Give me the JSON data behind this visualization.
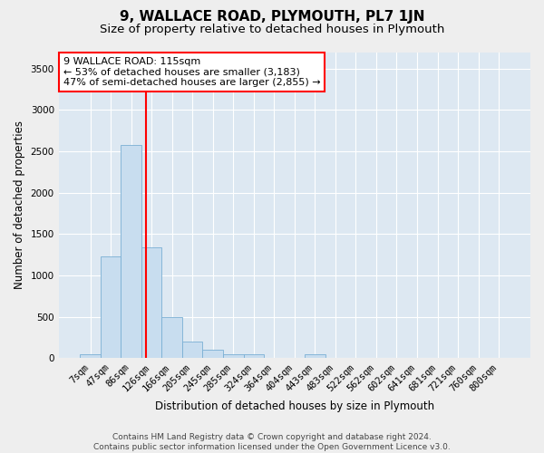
{
  "title": "9, WALLACE ROAD, PLYMOUTH, PL7 1JN",
  "subtitle": "Size of property relative to detached houses in Plymouth",
  "xlabel": "Distribution of detached houses by size in Plymouth",
  "ylabel": "Number of detached properties",
  "bin_labels": [
    "7sqm",
    "47sqm",
    "86sqm",
    "126sqm",
    "166sqm",
    "205sqm",
    "245sqm",
    "285sqm",
    "324sqm",
    "364sqm",
    "404sqm",
    "443sqm",
    "483sqm",
    "522sqm",
    "562sqm",
    "602sqm",
    "641sqm",
    "681sqm",
    "721sqm",
    "760sqm",
    "800sqm"
  ],
  "bar_heights": [
    50,
    1230,
    2580,
    1340,
    490,
    200,
    100,
    50,
    50,
    0,
    0,
    50,
    0,
    0,
    0,
    0,
    0,
    0,
    0,
    0,
    0
  ],
  "bar_color": "#c8ddef",
  "bar_edge_color": "#7aafd4",
  "ylim": [
    0,
    3700
  ],
  "yticks": [
    0,
    500,
    1000,
    1500,
    2000,
    2500,
    3000,
    3500
  ],
  "property_sqm": 115,
  "annotation_line1": "9 WALLACE ROAD: 115sqm",
  "annotation_line2": "← 53% of detached houses are smaller (3,183)",
  "annotation_line3": "47% of semi-detached houses are larger (2,855) →",
  "footer_line1": "Contains HM Land Registry data © Crown copyright and database right 2024.",
  "footer_line2": "Contains public sector information licensed under the Open Government Licence v3.0.",
  "bg_color": "#dde8f2",
  "grid_color": "#ffffff",
  "fig_bg_color": "#eeeeee",
  "title_fontsize": 11,
  "subtitle_fontsize": 9.5,
  "axis_label_fontsize": 8.5,
  "tick_fontsize": 7.5,
  "footer_fontsize": 6.5,
  "ann_fontsize": 8
}
